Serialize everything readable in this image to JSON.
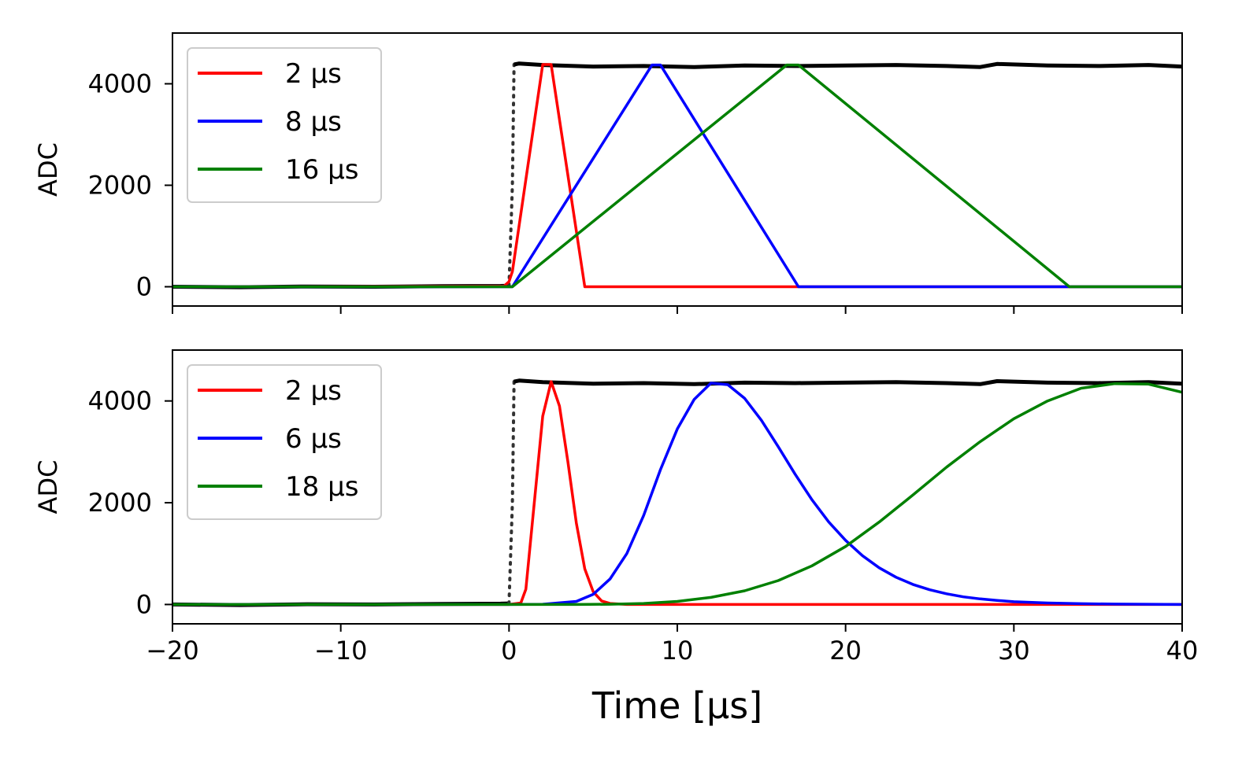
{
  "chart_data": [
    {
      "type": "line",
      "title": "",
      "xlabel": "",
      "ylabel": "ADC",
      "xlim": [
        -20,
        40
      ],
      "ylim": [
        -380,
        5000
      ],
      "xticks": [
        -20,
        -10,
        0,
        10,
        20,
        30,
        40
      ],
      "yticks": [
        0,
        2000,
        4000
      ],
      "ytick_labels": [
        "0",
        "2000",
        "4000"
      ],
      "legend_position": "upper-left",
      "grid": false,
      "series": [
        {
          "name": "",
          "color": "#000000",
          "style": "raw-signal",
          "x": [
            -20,
            -16,
            -12,
            -8,
            -4,
            -0.5,
            0,
            0.2,
            0.3,
            0.6,
            2,
            5,
            8,
            11,
            14,
            17,
            20,
            23,
            26,
            28,
            29,
            32,
            35,
            38,
            40
          ],
          "y": [
            0,
            -10,
            5,
            0,
            10,
            15,
            20,
            2000,
            4380,
            4400,
            4370,
            4340,
            4350,
            4330,
            4360,
            4350,
            4360,
            4370,
            4350,
            4330,
            4390,
            4360,
            4350,
            4370,
            4340
          ]
        },
        {
          "name": "2  μs",
          "color": "#ff0000",
          "x": [
            -20,
            -0.3,
            0,
            0.2,
            2.0,
            2.5,
            4.5,
            5,
            10,
            20,
            30,
            40
          ],
          "y": [
            0,
            10,
            100,
            300,
            4380,
            4380,
            0,
            0,
            0,
            0,
            0,
            0
          ]
        },
        {
          "name": "8  μs",
          "color": "#0000ff",
          "x": [
            -20,
            0.2,
            8.5,
            9.0,
            17.2,
            40
          ],
          "y": [
            0,
            0,
            4370,
            4370,
            0,
            0
          ]
        },
        {
          "name": "16 μs",
          "color": "#008000",
          "x": [
            -20,
            0.2,
            16.5,
            17.2,
            33.3,
            40
          ],
          "y": [
            0,
            0,
            4370,
            4370,
            0,
            0
          ]
        }
      ]
    },
    {
      "type": "line",
      "title": "",
      "xlabel": "Time [μs]",
      "ylabel": "ADC",
      "xlim": [
        -20,
        40
      ],
      "ylim": [
        -380,
        5000
      ],
      "xticks": [
        -20,
        -10,
        0,
        10,
        20,
        30,
        40
      ],
      "xtick_labels": [
        "−20",
        "−10",
        "0",
        "10",
        "20",
        "30",
        "40"
      ],
      "yticks": [
        0,
        2000,
        4000
      ],
      "ytick_labels": [
        "0",
        "2000",
        "4000"
      ],
      "legend_position": "upper-left",
      "grid": false,
      "series": [
        {
          "name": "",
          "color": "#000000",
          "style": "raw-signal",
          "x": [
            -20,
            -16,
            -12,
            -8,
            -4,
            -0.5,
            0,
            0.2,
            0.3,
            0.6,
            2,
            5,
            8,
            11,
            14,
            17,
            20,
            23,
            26,
            28,
            29,
            32,
            35,
            38,
            40
          ],
          "y": [
            0,
            -10,
            5,
            0,
            10,
            15,
            20,
            2000,
            4380,
            4400,
            4370,
            4340,
            4350,
            4330,
            4360,
            4350,
            4360,
            4370,
            4350,
            4330,
            4390,
            4360,
            4350,
            4370,
            4340
          ]
        },
        {
          "name": "2  μs",
          "color": "#ff0000",
          "x": [
            -20,
            0,
            0.7,
            1.0,
            1.5,
            2.0,
            2.5,
            3.0,
            3.5,
            4.0,
            4.5,
            5.0,
            5.5,
            6.0,
            7,
            10,
            20,
            30,
            40
          ],
          "y": [
            0,
            0,
            30,
            300,
            2000,
            3700,
            4380,
            3900,
            2800,
            1600,
            700,
            250,
            70,
            20,
            0,
            0,
            0,
            0,
            0
          ]
        },
        {
          "name": "6  μs",
          "color": "#0000ff",
          "x": [
            -20,
            0,
            2,
            4,
            5,
            6,
            7,
            8,
            9,
            10,
            11,
            12,
            13,
            14,
            15,
            16,
            17,
            18,
            19,
            20,
            21,
            22,
            23,
            24,
            25,
            26,
            27,
            28,
            29,
            30,
            32,
            34,
            36,
            40
          ],
          "y": [
            0,
            0,
            5,
            60,
            200,
            500,
            1000,
            1750,
            2650,
            3450,
            4030,
            4350,
            4320,
            4050,
            3620,
            3100,
            2560,
            2060,
            1620,
            1260,
            960,
            720,
            535,
            395,
            290,
            210,
            150,
            110,
            80,
            55,
            30,
            15,
            8,
            0
          ]
        },
        {
          "name": "18 μs",
          "color": "#008000",
          "x": [
            -20,
            0,
            4,
            6,
            8,
            10,
            12,
            14,
            16,
            18,
            20,
            22,
            24,
            26,
            28,
            30,
            32,
            34,
            36,
            38,
            40
          ],
          "y": [
            0,
            0,
            0,
            5,
            20,
            60,
            140,
            270,
            470,
            760,
            1140,
            1620,
            2150,
            2700,
            3200,
            3650,
            4000,
            4250,
            4340,
            4330,
            4170
          ]
        }
      ]
    }
  ]
}
